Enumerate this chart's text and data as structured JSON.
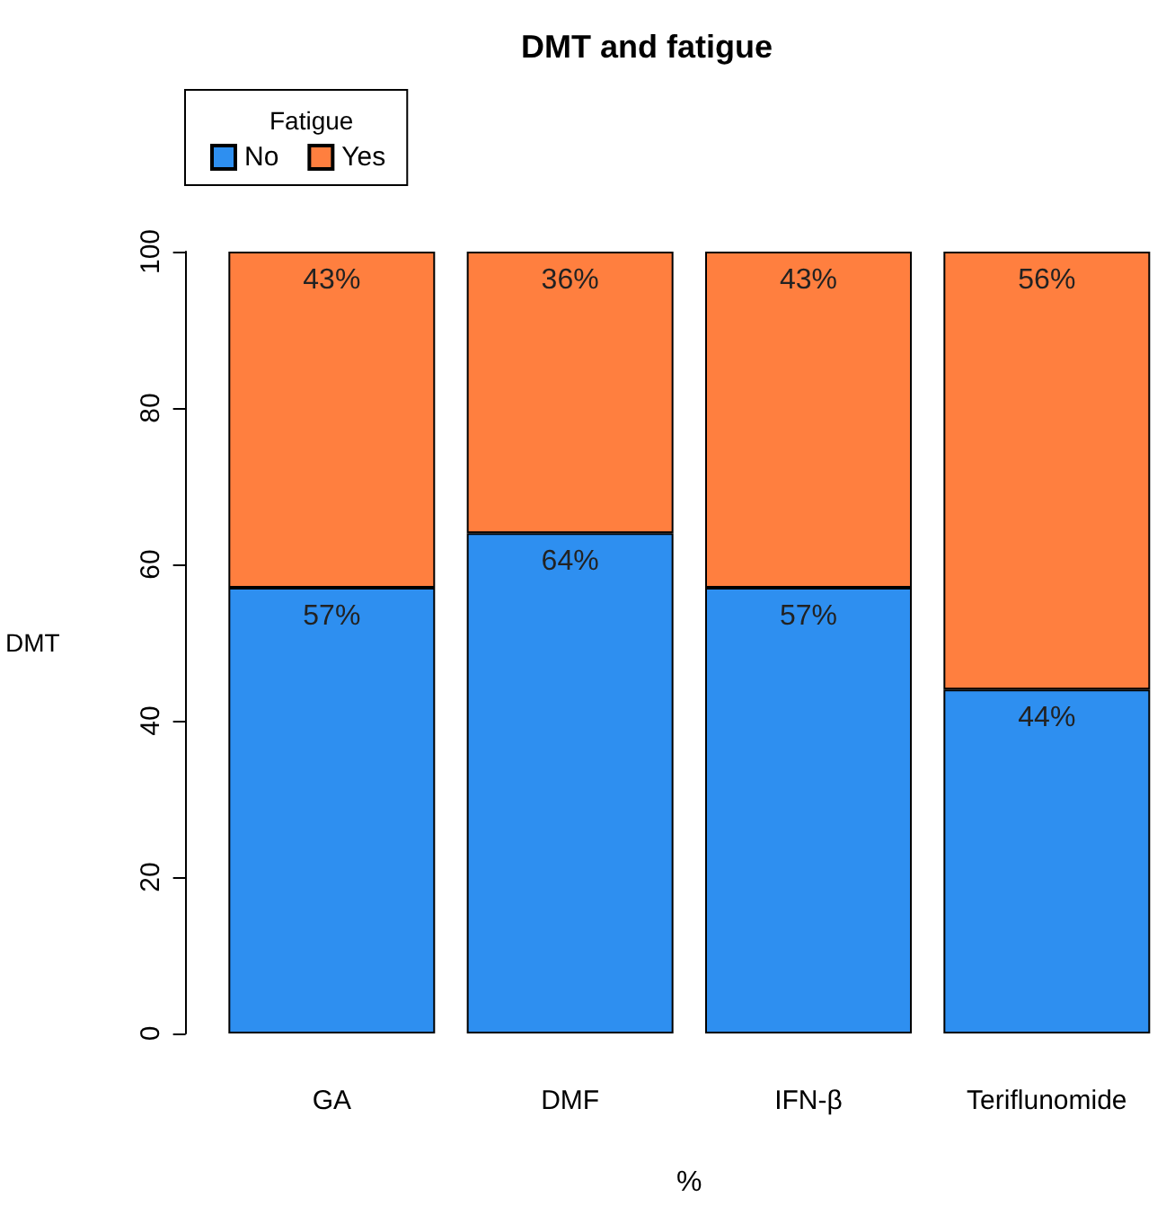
{
  "chart_data": {
    "type": "bar",
    "title": "DMT and fatigue",
    "xlabel": "%",
    "ylabel": "DMT",
    "legend_title": "Fatigue",
    "categories": [
      "GA",
      "DMF",
      "IFN-β",
      "Teriflunomide"
    ],
    "series": [
      {
        "name": "No",
        "color": "#2e8ff0",
        "values": [
          57,
          64,
          57,
          44
        ],
        "value_labels": [
          "57%",
          "64%",
          "57%",
          "44%"
        ]
      },
      {
        "name": "Yes",
        "color": "#ff7f3f",
        "values": [
          43,
          36,
          43,
          56
        ],
        "value_labels": [
          "43%",
          "36%",
          "43%",
          "56%"
        ]
      }
    ],
    "stacked": true,
    "ylim": [
      0,
      100
    ],
    "yticks": [
      0,
      20,
      40,
      60,
      80,
      100
    ],
    "legend": "top left"
  }
}
